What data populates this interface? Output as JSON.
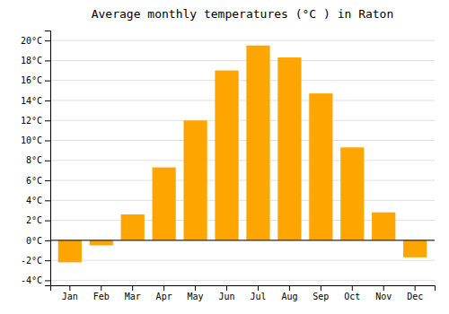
{
  "chart_data": {
    "type": "bar",
    "title": "Average monthly temperatures (°C ) in Raton",
    "categories": [
      "Jan",
      "Feb",
      "Mar",
      "Apr",
      "May",
      "Jun",
      "Jul",
      "Aug",
      "Sep",
      "Oct",
      "Nov",
      "Dec"
    ],
    "values": [
      -2.2,
      -0.5,
      2.6,
      7.3,
      12.0,
      17.0,
      19.5,
      18.3,
      14.7,
      9.3,
      2.8,
      -1.7
    ],
    "color": "#FFA500",
    "ylim": [
      -4.5,
      21
    ],
    "yticks": [
      {
        "value": -4,
        "label": "-4°C"
      },
      {
        "value": -2,
        "label": "-2°C"
      },
      {
        "value": 0,
        "label": "0°C"
      },
      {
        "value": 2,
        "label": "2°C"
      },
      {
        "value": 4,
        "label": "4°C"
      },
      {
        "value": 6,
        "label": "6°C"
      },
      {
        "value": 8,
        "label": "8°C"
      },
      {
        "value": 10,
        "label": "10°C"
      },
      {
        "value": 12,
        "label": "12°C"
      },
      {
        "value": 14,
        "label": "14°C"
      },
      {
        "value": 16,
        "label": "16°C"
      },
      {
        "value": 18,
        "label": "18°C"
      },
      {
        "value": 20,
        "label": "20°C"
      }
    ],
    "grid": true
  }
}
